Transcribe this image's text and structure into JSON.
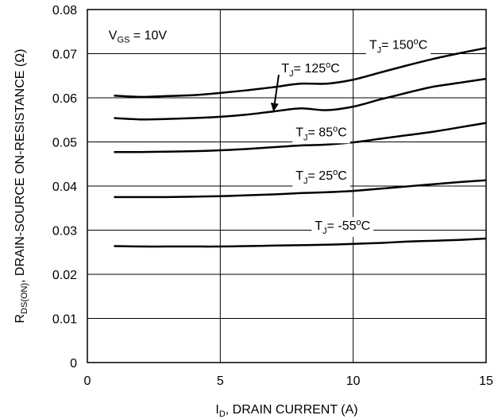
{
  "chart_data": {
    "type": "line",
    "xlabel_main": "I",
    "xlabel_sub": "D",
    "xlabel_rest": ", DRAIN CURRENT (A)",
    "ylabel_main": "R",
    "ylabel_sub": "DS(ON)",
    "ylabel_rest": ", DRAIN-SOURCE ON-RESISTANCE (Ω)",
    "xlim": [
      0,
      15
    ],
    "ylim": [
      0,
      0.08
    ],
    "xticks": [
      0,
      5,
      10,
      15
    ],
    "yticks": [
      0,
      0.01,
      0.02,
      0.03,
      0.04,
      0.05,
      0.06,
      0.07,
      0.08
    ],
    "xtick_labels": [
      "0",
      "5",
      "10",
      "15"
    ],
    "ytick_labels": [
      "0",
      "0.01",
      "0.02",
      "0.03",
      "0.04",
      "0.05",
      "0.06",
      "0.07",
      "0.08"
    ],
    "grid": true,
    "condition_main": "V",
    "condition_sub": "GS",
    "condition_rest": " = 10V",
    "series": [
      {
        "name": "TJ = 150°C",
        "label_pre": "T",
        "label_sub": "J",
        "label_mid": "= 150",
        "label_sup": "o",
        "label_post": "C",
        "x": [
          1,
          2,
          3,
          4,
          5,
          6,
          7,
          8,
          9,
          10,
          11,
          12,
          13,
          14,
          15
        ],
        "y": [
          0.0605,
          0.0602,
          0.0604,
          0.0606,
          0.0611,
          0.0617,
          0.0624,
          0.0632,
          0.0632,
          0.0641,
          0.0657,
          0.0673,
          0.0688,
          0.0701,
          0.0713
        ]
      },
      {
        "name": "TJ = 125°C",
        "label_pre": "T",
        "label_sub": "J",
        "label_mid": "= 125",
        "label_sup": "o",
        "label_post": "C",
        "x": [
          1,
          2,
          3,
          4,
          5,
          6,
          7,
          8,
          9,
          10,
          11,
          12,
          13,
          14,
          15
        ],
        "y": [
          0.0554,
          0.0551,
          0.0552,
          0.0554,
          0.0557,
          0.0562,
          0.0569,
          0.0576,
          0.0572,
          0.058,
          0.0596,
          0.0611,
          0.0625,
          0.0634,
          0.0643
        ]
      },
      {
        "name": "TJ = 85°C",
        "label_pre": "T",
        "label_sub": "J",
        "label_mid": "= 85",
        "label_sup": "o",
        "label_post": "C",
        "x": [
          1,
          2,
          3,
          4,
          5,
          6,
          7,
          8,
          9,
          10,
          11,
          12,
          13,
          14,
          15
        ],
        "y": [
          0.0477,
          0.0477,
          0.0478,
          0.0479,
          0.0481,
          0.0484,
          0.0488,
          0.0492,
          0.0494,
          0.0499,
          0.0507,
          0.0515,
          0.0523,
          0.0533,
          0.0543
        ]
      },
      {
        "name": "TJ = 25°C",
        "label_pre": "T",
        "label_sub": "J",
        "label_mid": "= 25",
        "label_sup": "o",
        "label_post": "C",
        "x": [
          1,
          2,
          3,
          4,
          5,
          6,
          7,
          8,
          9,
          10,
          11,
          12,
          13,
          14,
          15
        ],
        "y": [
          0.0375,
          0.0375,
          0.0375,
          0.0376,
          0.0377,
          0.0379,
          0.0381,
          0.0384,
          0.0386,
          0.0389,
          0.0394,
          0.0399,
          0.0404,
          0.0409,
          0.0413
        ]
      },
      {
        "name": "TJ = -55°C",
        "label_pre": "T",
        "label_sub": "J",
        "label_mid": "= -55",
        "label_sup": "o",
        "label_post": "C",
        "x": [
          1,
          2,
          3,
          4,
          5,
          6,
          7,
          8,
          9,
          10,
          11,
          12,
          13,
          14,
          15
        ],
        "y": [
          0.0264,
          0.0263,
          0.0263,
          0.0263,
          0.0263,
          0.0264,
          0.0265,
          0.0266,
          0.0267,
          0.0269,
          0.0271,
          0.0274,
          0.0276,
          0.0278,
          0.0281
        ]
      }
    ],
    "label_anchors": [
      {
        "x": 11.7,
        "y": 0.0711
      },
      {
        "x": 8.4,
        "y": 0.0658
      },
      {
        "x": 8.8,
        "y": 0.0513
      },
      {
        "x": 8.8,
        "y": 0.0414
      },
      {
        "x": 9.6,
        "y": 0.0301
      }
    ],
    "arrow": {
      "from": [
        7.2,
        0.0652
      ],
      "to": [
        7.0,
        0.0568
      ]
    }
  }
}
